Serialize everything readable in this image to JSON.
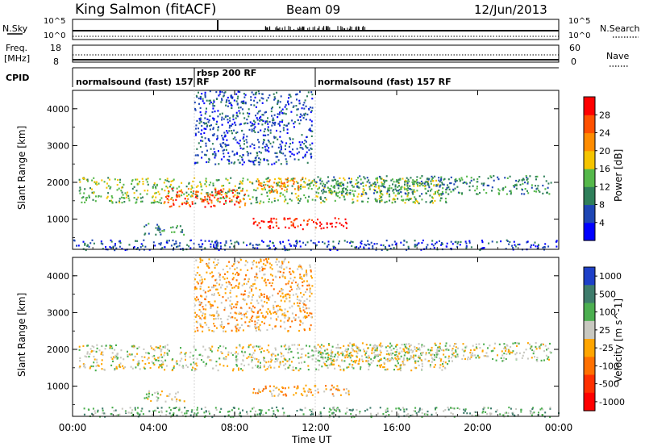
{
  "header": {
    "station": "King Salmon (fitACF)",
    "beam": "Beam 09",
    "date": "12/Jun/2013"
  },
  "top_panels": {
    "nsky_label": "N.Sky",
    "nsky_ticks": [
      "10^5",
      "10^0"
    ],
    "nsearch_label": "N.Search",
    "nsearch_ticks": [
      "10^5",
      "10^0"
    ],
    "freq_label_1": "Freq.",
    "freq_label_2": "[MHz]",
    "freq_ticks": [
      "18",
      "8"
    ],
    "nave_label": "Nave",
    "nave_ticks": [
      "60",
      "0"
    ],
    "cpid_label": "CPID",
    "cpid_segments": [
      {
        "label": "normalsound (fast) 157 RF",
        "start_h": 0,
        "end_h": 6
      },
      {
        "label": "rbsp 200 RF",
        "start_h": 6,
        "end_h": 12
      },
      {
        "label": "normalsound (fast) 157 RF",
        "start_h": 12,
        "end_h": 24
      }
    ]
  },
  "x_axis": {
    "label": "Time UT",
    "ticks": [
      "00:00",
      "04:00",
      "08:00",
      "12:00",
      "16:00",
      "20:00",
      "00:00"
    ],
    "range_h": [
      0,
      24
    ]
  },
  "chart_data": [
    {
      "type": "heatmap",
      "quantity": "Power",
      "xlabel": "Time UT",
      "ylabel": "Slant Range [km]",
      "ylim": [
        180,
        4500
      ],
      "yticks": [
        "1000",
        "2000",
        "3000",
        "4000"
      ],
      "colorbar_label": "Power [dB]",
      "colorbar_ticks": [
        "4",
        "8",
        "12",
        "16",
        "20",
        "24",
        "28"
      ],
      "colorbar_range": [
        0,
        32
      ],
      "colors": [
        "#0000ff",
        "#1e46b4",
        "#2f7f5a",
        "#55b84a",
        "#f5c400",
        "#ff8c00",
        "#ff5000",
        "#ff0000"
      ],
      "bands": [
        {
          "x0": 0.3,
          "x1": 18.5,
          "y0": 1450,
          "y1": 2150,
          "level": 3
        },
        {
          "x0": 4.5,
          "x1": 8.5,
          "y0": 1350,
          "y1": 1850,
          "level": 6
        },
        {
          "x0": 9.0,
          "x1": 11.5,
          "y0": 1750,
          "y1": 2150,
          "level": 5
        },
        {
          "x0": 12.0,
          "x1": 23.6,
          "y0": 1700,
          "y1": 2200,
          "level": 2
        },
        {
          "x0": 8.8,
          "x1": 13.8,
          "y0": 750,
          "y1": 1050,
          "level": 7
        },
        {
          "x0": 3.5,
          "x1": 5.5,
          "y0": 600,
          "y1": 900,
          "level": 2
        },
        {
          "x0": 6.0,
          "x1": 11.8,
          "y0": 2500,
          "y1": 4500,
          "level": 1
        },
        {
          "x0": 0.0,
          "x1": 24.0,
          "y0": 180,
          "y1": 450,
          "level": 1
        }
      ]
    },
    {
      "type": "heatmap",
      "quantity": "Velocity",
      "xlabel": "Time UT",
      "ylabel": "Slant Range [km]",
      "ylim": [
        180,
        4500
      ],
      "yticks": [
        "1000",
        "2000",
        "3000",
        "4000"
      ],
      "colorbar_label": "Velocity [m s^-1]",
      "colorbar_ticks": [
        "1000",
        "500",
        "100",
        "25",
        "-25",
        "-100",
        "-500",
        "-1000"
      ],
      "colors": [
        "#1e40c8",
        "#3e7c6c",
        "#4caf50",
        "#c8c8c0",
        "#ffa500",
        "#ff7000",
        "#ff3000",
        "#ff0000"
      ],
      "bands": [
        {
          "x0": 0.3,
          "x1": 18.5,
          "y0": 1450,
          "y1": 2150,
          "level": 3
        },
        {
          "x0": 12.0,
          "x1": 23.6,
          "y0": 1700,
          "y1": 2200,
          "level": 3
        },
        {
          "x0": 8.8,
          "x1": 13.8,
          "y0": 750,
          "y1": 1050,
          "level": 4
        },
        {
          "x0": 3.5,
          "x1": 5.5,
          "y0": 600,
          "y1": 900,
          "level": 3
        },
        {
          "x0": 6.0,
          "x1": 11.8,
          "y0": 2500,
          "y1": 4500,
          "level": 4
        },
        {
          "x0": 0.0,
          "x1": 24.0,
          "y0": 180,
          "y1": 450,
          "level": 2
        }
      ]
    }
  ]
}
